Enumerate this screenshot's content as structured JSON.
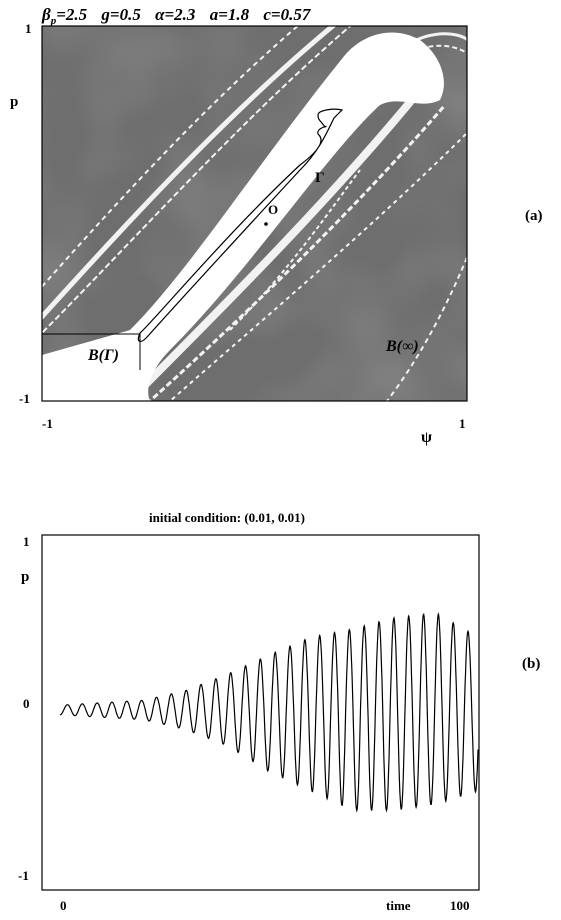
{
  "header": {
    "parts": [
      {
        "sym": "β",
        "sub": "p",
        "val": "=2.5"
      },
      {
        "sym": "g",
        "sub": "",
        "val": "=0.5"
      },
      {
        "sym": "α",
        "sub": "",
        "val": "=2.3"
      },
      {
        "sym": "a",
        "sub": "",
        "val": "=1.8"
      },
      {
        "sym": "c",
        "sub": "",
        "val": "=0.57"
      }
    ]
  },
  "chart_data": [
    {
      "type": "heatmap",
      "panel_label": "(a)",
      "xlabel": "ψ",
      "ylabel": "p",
      "xlim": [
        -1,
        1
      ],
      "ylim": [
        -1,
        1
      ],
      "x_ticks": [
        "-1",
        "1"
      ],
      "y_ticks": [
        "1",
        "-1"
      ],
      "annotations": {
        "gamma": "Γ",
        "origin": "O",
        "basin_gamma": "B(Γ)",
        "basin_infinity": "B(∞)"
      },
      "colors": {
        "escape_region": "#6e6e6e",
        "basin_region": "#ffffff"
      }
    },
    {
      "type": "line",
      "panel_label": "(b)",
      "title": "initial condition: (0.01, 0.01)",
      "xlabel": "time",
      "ylabel": "p",
      "xlim": [
        0,
        100
      ],
      "ylim": [
        -1,
        1
      ],
      "x_ticks": [
        "0",
        "100"
      ],
      "y_ticks": [
        "1",
        "0",
        "-1"
      ],
      "series": [
        {
          "period": 3.55,
          "amplitude_envelope": [
            {
              "t": 0,
              "hi": 0.03,
              "lo": -0.03
            },
            {
              "t": 20,
              "hi": 0.06,
              "lo": -0.06
            },
            {
              "t": 30,
              "hi": 0.12,
              "lo": -0.12
            },
            {
              "t": 40,
              "hi": 0.22,
              "lo": -0.22
            },
            {
              "t": 50,
              "hi": 0.34,
              "lo": -0.38
            },
            {
              "t": 60,
              "hi": 0.45,
              "lo": -0.5
            },
            {
              "t": 70,
              "hi": 0.5,
              "lo": -0.62
            },
            {
              "t": 80,
              "hi": 0.57,
              "lo": -0.62
            },
            {
              "t": 90,
              "hi": 0.6,
              "lo": -0.58
            },
            {
              "t": 100,
              "hi": 0.45,
              "lo": -0.5
            }
          ]
        }
      ]
    }
  ]
}
